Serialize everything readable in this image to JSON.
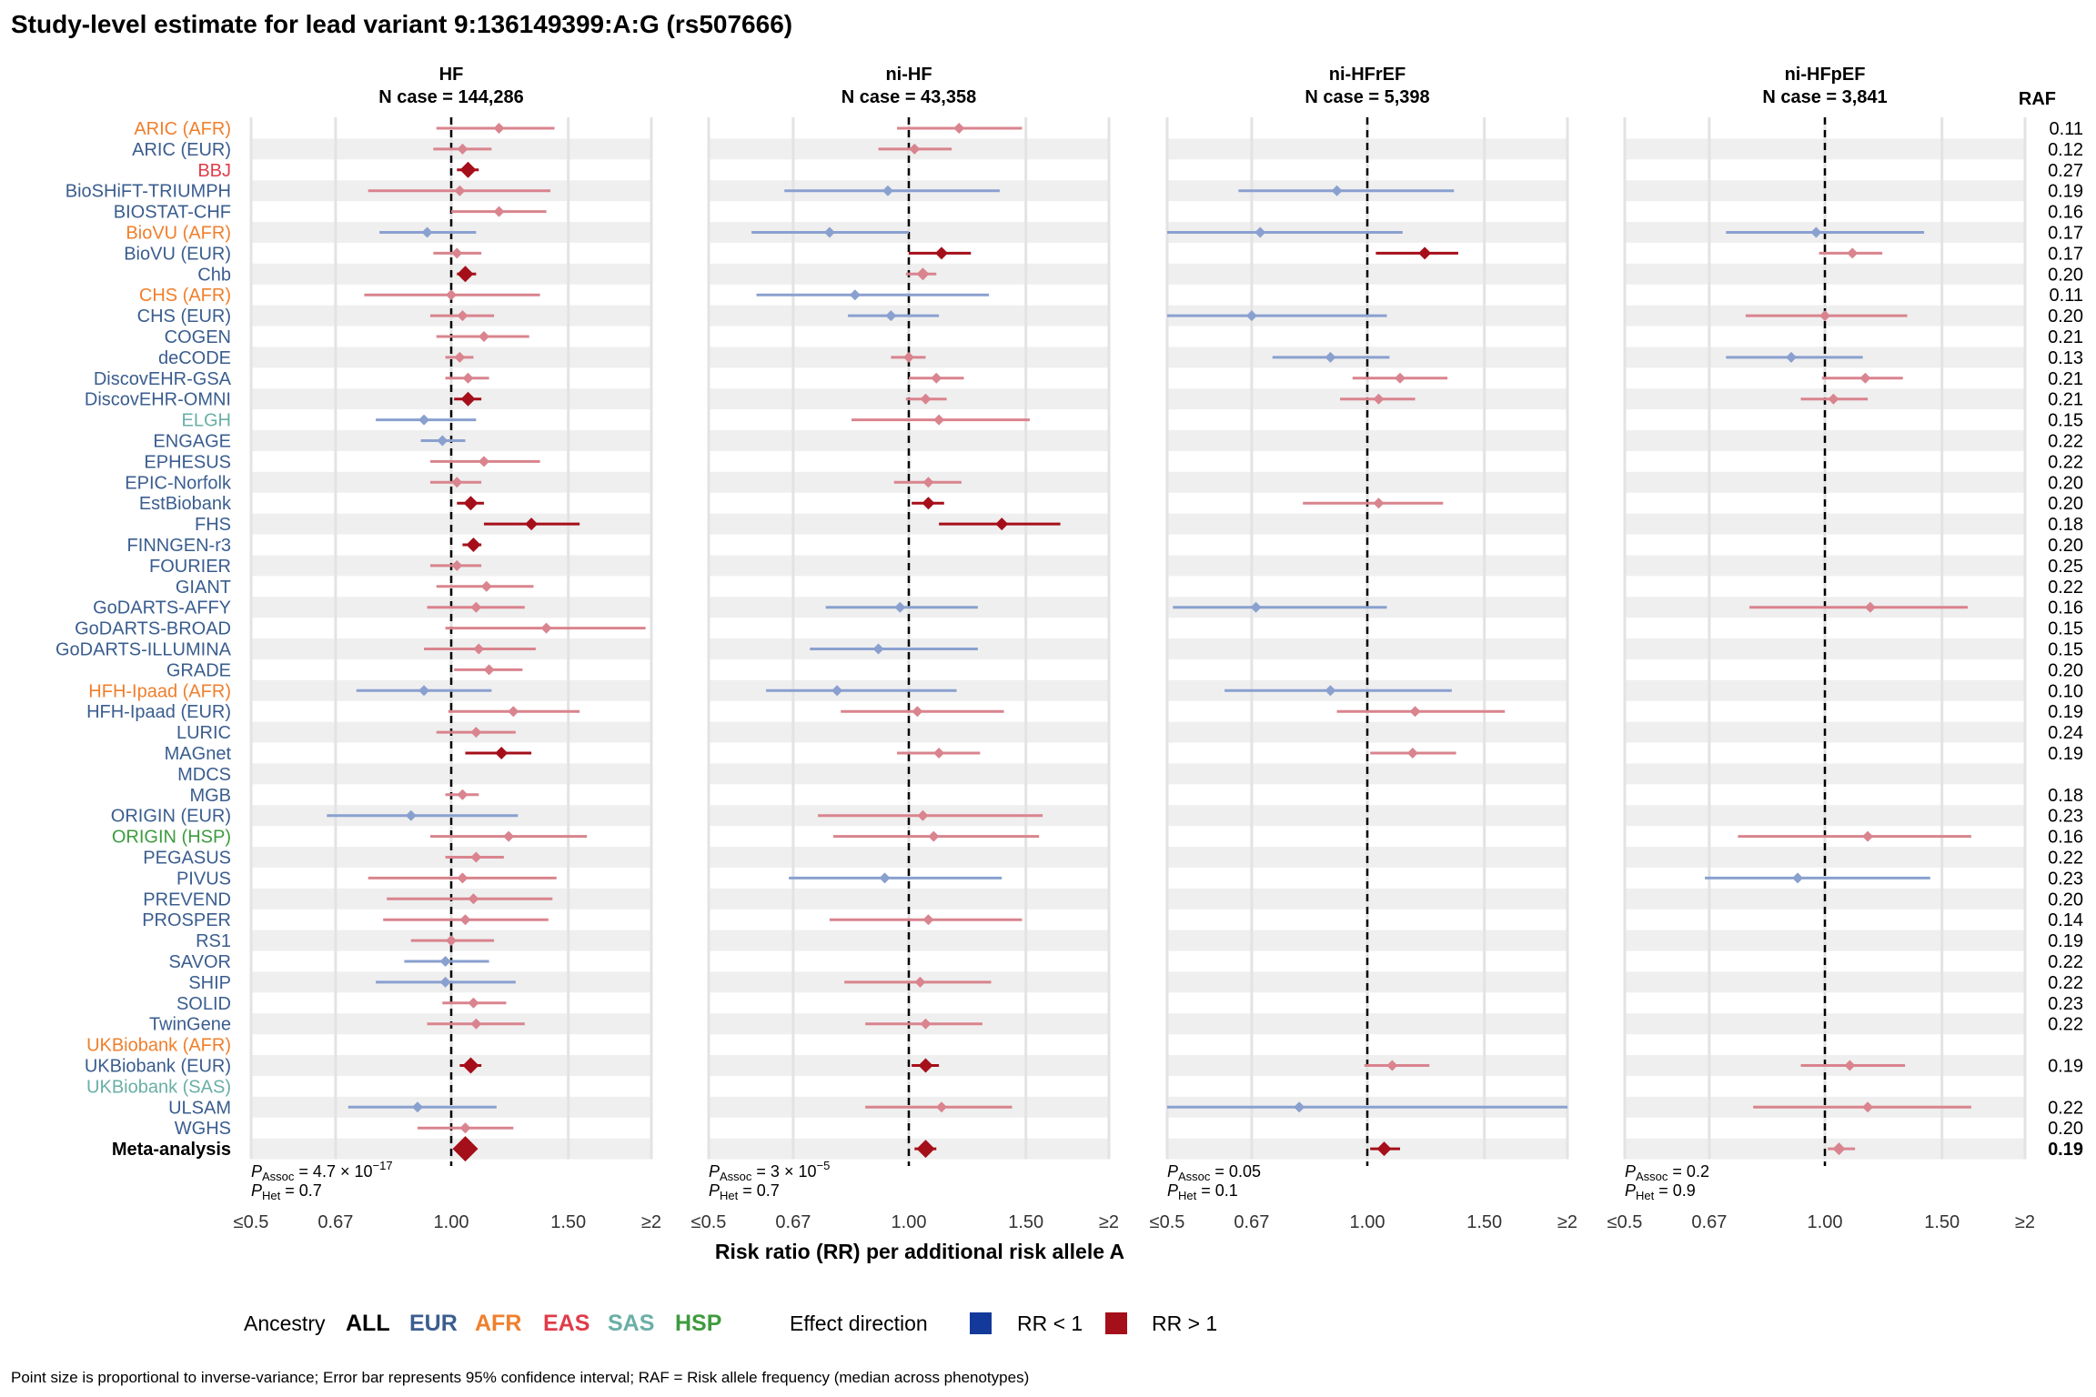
{
  "title": "Study-level estimate for lead variant 9:136149399:A:G (rs507666)",
  "raf_header": "RAF",
  "colors": {
    "ALL": "#000000",
    "EUR": "#3a5d8f",
    "AFR": "#f07f2c",
    "EAS": "#e03c4a",
    "SAS": "#6aafa6",
    "HSP": "#3e9b3e",
    "rr_lt1": "#13399a",
    "rr_gt1": "#a50f1a",
    "rr_lt1_faint": "#8aa0cf",
    "rr_gt1_faint": "#d9848e",
    "band": "#efefef",
    "grid": "#e3e3e3"
  },
  "x_axis": {
    "label": "Risk ratio (RR) per additional risk allele A",
    "scale": "log",
    "ticks": [
      0.5,
      0.67,
      1.0,
      1.5,
      2.0
    ],
    "tick_labels": [
      "≤0.5",
      "0.67",
      "1.00",
      "1.50",
      "≥2"
    ],
    "xlim": [
      0.5,
      2.0
    ],
    "reference": 1.0
  },
  "legend": {
    "ancestry_label": "Ancestry",
    "ancestries": [
      "ALL",
      "EUR",
      "AFR",
      "EAS",
      "SAS",
      "HSP"
    ],
    "effect_label": "Effect direction",
    "effects": [
      "RR < 1",
      "RR > 1"
    ]
  },
  "caption": "Point size is proportional to inverse-variance; Error bar represents 95% confidence interval; RAF = Risk allele frequency (median across phenotypes)",
  "chart_data": {
    "type": "forest",
    "studies": [
      {
        "name": "ARIC (AFR)",
        "anc": "AFR",
        "raf": "0.11"
      },
      {
        "name": "ARIC (EUR)",
        "anc": "EUR",
        "raf": "0.12"
      },
      {
        "name": "BBJ",
        "anc": "EAS",
        "raf": "0.27"
      },
      {
        "name": "BioSHiFT-TRIUMPH",
        "anc": "EUR",
        "raf": "0.19"
      },
      {
        "name": "BIOSTAT-CHF",
        "anc": "EUR",
        "raf": "0.16"
      },
      {
        "name": "BioVU (AFR)",
        "anc": "AFR",
        "raf": "0.17"
      },
      {
        "name": "BioVU (EUR)",
        "anc": "EUR",
        "raf": "0.17"
      },
      {
        "name": "Chb",
        "anc": "EUR",
        "raf": "0.20"
      },
      {
        "name": "CHS (AFR)",
        "anc": "AFR",
        "raf": "0.11"
      },
      {
        "name": "CHS (EUR)",
        "anc": "EUR",
        "raf": "0.20"
      },
      {
        "name": "COGEN",
        "anc": "EUR",
        "raf": "0.21"
      },
      {
        "name": "deCODE",
        "anc": "EUR",
        "raf": "0.13"
      },
      {
        "name": "DiscovEHR-GSA",
        "anc": "EUR",
        "raf": "0.21"
      },
      {
        "name": "DiscovEHR-OMNI",
        "anc": "EUR",
        "raf": "0.21"
      },
      {
        "name": "ELGH",
        "anc": "SAS",
        "raf": "0.15"
      },
      {
        "name": "ENGAGE",
        "anc": "EUR",
        "raf": "0.22"
      },
      {
        "name": "EPHESUS",
        "anc": "EUR",
        "raf": "0.22"
      },
      {
        "name": "EPIC-Norfolk",
        "anc": "EUR",
        "raf": "0.20"
      },
      {
        "name": "EstBiobank",
        "anc": "EUR",
        "raf": "0.20"
      },
      {
        "name": "FHS",
        "anc": "EUR",
        "raf": "0.18"
      },
      {
        "name": "FINNGEN-r3",
        "anc": "EUR",
        "raf": "0.20"
      },
      {
        "name": "FOURIER",
        "anc": "EUR",
        "raf": "0.25"
      },
      {
        "name": "GIANT",
        "anc": "EUR",
        "raf": "0.22"
      },
      {
        "name": "GoDARTS-AFFY",
        "anc": "EUR",
        "raf": "0.16"
      },
      {
        "name": "GoDARTS-BROAD",
        "anc": "EUR",
        "raf": "0.15"
      },
      {
        "name": "GoDARTS-ILLUMINA",
        "anc": "EUR",
        "raf": "0.15"
      },
      {
        "name": "GRADE",
        "anc": "EUR",
        "raf": "0.20"
      },
      {
        "name": "HFH-Ipaad (AFR)",
        "anc": "AFR",
        "raf": "0.10"
      },
      {
        "name": "HFH-Ipaad (EUR)",
        "anc": "EUR",
        "raf": "0.19"
      },
      {
        "name": "LURIC",
        "anc": "EUR",
        "raf": "0.24"
      },
      {
        "name": "MAGnet",
        "anc": "EUR",
        "raf": "0.19"
      },
      {
        "name": "MDCS",
        "anc": "EUR",
        "raf": ""
      },
      {
        "name": "MGB",
        "anc": "EUR",
        "raf": "0.18"
      },
      {
        "name": "ORIGIN (EUR)",
        "anc": "EUR",
        "raf": "0.23"
      },
      {
        "name": "ORIGIN (HSP)",
        "anc": "HSP",
        "raf": "0.16"
      },
      {
        "name": "PEGASUS",
        "anc": "EUR",
        "raf": "0.22"
      },
      {
        "name": "PIVUS",
        "anc": "EUR",
        "raf": "0.23"
      },
      {
        "name": "PREVEND",
        "anc": "EUR",
        "raf": "0.20"
      },
      {
        "name": "PROSPER",
        "anc": "EUR",
        "raf": "0.14"
      },
      {
        "name": "RS1",
        "anc": "EUR",
        "raf": "0.19"
      },
      {
        "name": "SAVOR",
        "anc": "EUR",
        "raf": "0.22"
      },
      {
        "name": "SHIP",
        "anc": "EUR",
        "raf": "0.22"
      },
      {
        "name": "SOLID",
        "anc": "EUR",
        "raf": "0.23"
      },
      {
        "name": "TwinGene",
        "anc": "EUR",
        "raf": "0.22"
      },
      {
        "name": "UKBiobank (AFR)",
        "anc": "AFR",
        "raf": ""
      },
      {
        "name": "UKBiobank (EUR)",
        "anc": "EUR",
        "raf": "0.19"
      },
      {
        "name": "UKBiobank (SAS)",
        "anc": "SAS",
        "raf": ""
      },
      {
        "name": "ULSAM",
        "anc": "EUR",
        "raf": "0.22"
      },
      {
        "name": "WGHS",
        "anc": "EUR",
        "raf": "0.20"
      },
      {
        "name": "Meta-analysis",
        "anc": "ALL",
        "raf": "0.19",
        "bold": true
      }
    ],
    "panels": [
      {
        "name": "HF",
        "ncase": "N case = 144,286",
        "p_assoc": {
          "base": "4.7 × 10",
          "exp": "−17"
        },
        "p_het": "0.7",
        "estimates": [
          [
            0,
            1.18,
            0.95,
            1.43,
            0,
            6
          ],
          [
            1,
            1.04,
            0.94,
            1.15,
            0,
            6
          ],
          [
            2,
            1.06,
            1.02,
            1.1,
            1,
            9
          ],
          [
            3,
            1.03,
            0.75,
            1.41,
            0,
            6
          ],
          [
            4,
            1.18,
            1.0,
            1.39,
            0,
            6
          ],
          [
            5,
            0.92,
            0.78,
            1.09,
            0,
            6
          ],
          [
            6,
            1.02,
            0.94,
            1.11,
            0,
            6
          ],
          [
            7,
            1.05,
            1.02,
            1.09,
            1,
            9
          ],
          [
            8,
            1.0,
            0.74,
            1.36,
            0,
            6
          ],
          [
            9,
            1.04,
            0.93,
            1.16,
            0,
            6
          ],
          [
            10,
            1.12,
            0.95,
            1.31,
            0,
            6
          ],
          [
            11,
            1.03,
            0.98,
            1.08,
            0,
            6
          ],
          [
            12,
            1.06,
            0.98,
            1.14,
            0,
            6
          ],
          [
            13,
            1.06,
            1.01,
            1.11,
            1,
            8
          ],
          [
            14,
            0.91,
            0.77,
            1.09,
            0,
            6
          ],
          [
            15,
            0.97,
            0.9,
            1.05,
            0,
            6
          ],
          [
            16,
            1.12,
            0.93,
            1.36,
            0,
            6
          ],
          [
            17,
            1.02,
            0.93,
            1.11,
            0,
            6
          ],
          [
            18,
            1.07,
            1.02,
            1.12,
            1,
            8
          ],
          [
            19,
            1.32,
            1.12,
            1.56,
            1,
            7
          ],
          [
            20,
            1.08,
            1.04,
            1.11,
            1,
            8
          ],
          [
            21,
            1.02,
            0.93,
            1.11,
            0,
            6
          ],
          [
            22,
            1.13,
            0.95,
            1.33,
            0,
            6
          ],
          [
            23,
            1.09,
            0.92,
            1.29,
            0,
            6
          ],
          [
            24,
            1.39,
            0.98,
            1.96,
            0,
            6
          ],
          [
            25,
            1.1,
            0.91,
            1.34,
            0,
            6
          ],
          [
            26,
            1.14,
            1.01,
            1.28,
            0,
            6
          ],
          [
            27,
            0.91,
            0.72,
            1.15,
            0,
            6
          ],
          [
            28,
            1.24,
            0.99,
            1.56,
            0,
            6
          ],
          [
            29,
            1.09,
            0.95,
            1.25,
            0,
            6
          ],
          [
            30,
            1.19,
            1.05,
            1.32,
            1,
            7
          ],
          [
            32,
            1.04,
            0.98,
            1.1,
            0,
            6
          ],
          [
            33,
            0.87,
            0.65,
            1.26,
            0,
            6
          ],
          [
            34,
            1.22,
            0.93,
            1.6,
            0,
            6
          ],
          [
            35,
            1.09,
            0.98,
            1.2,
            0,
            6
          ],
          [
            36,
            1.04,
            0.75,
            1.44,
            0,
            6
          ],
          [
            37,
            1.08,
            0.8,
            1.42,
            0,
            6
          ],
          [
            38,
            1.05,
            0.79,
            1.4,
            0,
            6
          ],
          [
            39,
            1.0,
            0.87,
            1.16,
            0,
            6
          ],
          [
            40,
            0.98,
            0.85,
            1.14,
            0,
            6
          ],
          [
            41,
            0.98,
            0.77,
            1.25,
            0,
            6
          ],
          [
            42,
            1.08,
            0.97,
            1.21,
            0,
            6
          ],
          [
            43,
            1.09,
            0.92,
            1.29,
            0,
            6
          ],
          [
            45,
            1.07,
            1.03,
            1.11,
            1,
            9
          ],
          [
            47,
            0.89,
            0.7,
            1.17,
            0,
            6
          ],
          [
            48,
            1.05,
            0.89,
            1.24,
            0,
            6
          ],
          [
            49,
            1.05,
            1.02,
            1.08,
            1,
            14
          ]
        ]
      },
      {
        "name": "ni-HF",
        "ncase": "N case = 43,358",
        "p_assoc": {
          "base": "3 × 10",
          "exp": "−5"
        },
        "p_het": "0.7",
        "estimates": [
          [
            0,
            1.19,
            0.96,
            1.48,
            0,
            6
          ],
          [
            1,
            1.02,
            0.9,
            1.16,
            0,
            6
          ],
          [
            3,
            0.93,
            0.65,
            1.37,
            0,
            6
          ],
          [
            5,
            0.76,
            0.58,
            1.0,
            0,
            6
          ],
          [
            6,
            1.12,
            1.0,
            1.24,
            1,
            7
          ],
          [
            7,
            1.05,
            0.99,
            1.1,
            0,
            7
          ],
          [
            8,
            0.83,
            0.59,
            1.32,
            0,
            6
          ],
          [
            9,
            0.94,
            0.81,
            1.11,
            0,
            6
          ],
          [
            11,
            1.0,
            0.94,
            1.06,
            0,
            6
          ],
          [
            12,
            1.1,
            1.0,
            1.21,
            0,
            6
          ],
          [
            13,
            1.06,
            0.99,
            1.14,
            0,
            6
          ],
          [
            14,
            1.11,
            0.82,
            1.52,
            0,
            6
          ],
          [
            17,
            1.07,
            0.95,
            1.2,
            0,
            6
          ],
          [
            18,
            1.07,
            1.01,
            1.13,
            1,
            7
          ],
          [
            19,
            1.38,
            1.11,
            1.69,
            1,
            7
          ],
          [
            23,
            0.97,
            0.75,
            1.27,
            0,
            6
          ],
          [
            25,
            0.9,
            0.71,
            1.27,
            0,
            6
          ],
          [
            27,
            0.78,
            0.61,
            1.18,
            0,
            6
          ],
          [
            28,
            1.03,
            0.79,
            1.39,
            0,
            6
          ],
          [
            30,
            1.11,
            0.96,
            1.28,
            0,
            6
          ],
          [
            33,
            1.05,
            0.73,
            1.59,
            0,
            6
          ],
          [
            34,
            1.09,
            0.77,
            1.57,
            0,
            6
          ],
          [
            36,
            0.92,
            0.66,
            1.38,
            0,
            6
          ],
          [
            38,
            1.07,
            0.76,
            1.48,
            0,
            6
          ],
          [
            41,
            1.04,
            0.8,
            1.33,
            0,
            6
          ],
          [
            43,
            1.06,
            0.86,
            1.29,
            0,
            6
          ],
          [
            45,
            1.06,
            1.01,
            1.11,
            1,
            8
          ],
          [
            47,
            1.12,
            0.86,
            1.43,
            0,
            6
          ],
          [
            49,
            1.06,
            1.02,
            1.1,
            1,
            10
          ]
        ]
      },
      {
        "name": "ni-HFrEF",
        "ncase": "N case = 5,398",
        "p_assoc": {
          "base": "0.05",
          "exp": ""
        },
        "p_het": "0.1",
        "estimates": [
          [
            3,
            0.9,
            0.64,
            1.35,
            0,
            6
          ],
          [
            5,
            0.69,
            0.5,
            1.13,
            0,
            6
          ],
          [
            6,
            1.22,
            1.03,
            1.37,
            1,
            7
          ],
          [
            9,
            0.67,
            0.5,
            1.07,
            0,
            6
          ],
          [
            11,
            0.88,
            0.72,
            1.08,
            0,
            6
          ],
          [
            12,
            1.12,
            0.95,
            1.32,
            0,
            6
          ],
          [
            13,
            1.04,
            0.91,
            1.18,
            0,
            6
          ],
          [
            18,
            1.04,
            0.8,
            1.3,
            0,
            6
          ],
          [
            23,
            0.68,
            0.51,
            1.07,
            0,
            6
          ],
          [
            27,
            0.88,
            0.61,
            1.34,
            0,
            6
          ],
          [
            28,
            1.18,
            0.9,
            1.61,
            0,
            6
          ],
          [
            30,
            1.17,
            1.01,
            1.36,
            0,
            6
          ],
          [
            45,
            1.09,
            0.99,
            1.24,
            0,
            6
          ],
          [
            47,
            0.79,
            0.5,
            2.0,
            0,
            6
          ],
          [
            49,
            1.06,
            1.01,
            1.12,
            1,
            8
          ]
        ]
      },
      {
        "name": "ni-HFpEF",
        "ncase": "N case = 3,841",
        "p_assoc": {
          "base": "0.2",
          "exp": ""
        },
        "p_het": "0.9",
        "estimates": [
          [
            5,
            0.97,
            0.71,
            1.41,
            0,
            6
          ],
          [
            6,
            1.1,
            0.98,
            1.22,
            0,
            6
          ],
          [
            9,
            1.0,
            0.76,
            1.33,
            0,
            6
          ],
          [
            11,
            0.89,
            0.71,
            1.14,
            0,
            6
          ],
          [
            12,
            1.15,
            0.99,
            1.31,
            0,
            6
          ],
          [
            13,
            1.03,
            0.92,
            1.16,
            0,
            6
          ],
          [
            23,
            1.17,
            0.77,
            1.64,
            0,
            6
          ],
          [
            34,
            1.16,
            0.74,
            1.66,
            0,
            6
          ],
          [
            36,
            0.91,
            0.66,
            1.44,
            0,
            6
          ],
          [
            45,
            1.09,
            0.92,
            1.32,
            0,
            6
          ],
          [
            47,
            1.16,
            0.78,
            1.66,
            0,
            6
          ],
          [
            49,
            1.05,
            1.01,
            1.11,
            0,
            7
          ]
        ]
      }
    ]
  }
}
